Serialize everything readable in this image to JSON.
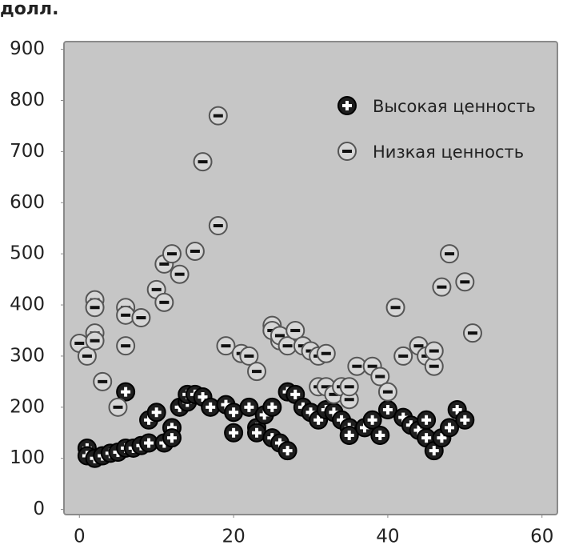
{
  "chart_data": {
    "type": "scatter",
    "ylabel": "долл.",
    "xlim": [
      -2,
      62
    ],
    "xticks": [
      0,
      20,
      40,
      60
    ],
    "ylim": [
      -10,
      915
    ],
    "yticks": [
      0,
      100,
      200,
      300,
      400,
      500,
      600,
      700,
      800,
      900
    ],
    "grid": false,
    "legend": "upper right",
    "series": [
      {
        "name": "Высокая ценность",
        "color": "#1e1e1e",
        "x": [
          1,
          1,
          2,
          3,
          4,
          5,
          6,
          6,
          7,
          8,
          9,
          9,
          10,
          11,
          12,
          12,
          13,
          14,
          14,
          15,
          16,
          17,
          19,
          20,
          20,
          22,
          23,
          23,
          24,
          25,
          25,
          26,
          27,
          27,
          28,
          29,
          30,
          31,
          32,
          33,
          34,
          35,
          35,
          37,
          38,
          39,
          40,
          42,
          43,
          44,
          45,
          45,
          46,
          47,
          48,
          49,
          50
        ],
        "values": [
          120,
          105,
          100,
          105,
          110,
          112,
          120,
          230,
          120,
          125,
          130,
          175,
          190,
          130,
          160,
          140,
          200,
          210,
          225,
          225,
          220,
          200,
          205,
          190,
          150,
          200,
          160,
          150,
          185,
          200,
          140,
          130,
          115,
          230,
          225,
          200,
          190,
          175,
          195,
          190,
          175,
          160,
          145,
          160,
          175,
          145,
          195,
          180,
          165,
          155,
          175,
          140,
          115,
          140,
          160,
          195,
          175
        ]
      },
      {
        "name": "Низкая ценность",
        "color": "#d6d6d6",
        "x": [
          0,
          1,
          2,
          2,
          2,
          2,
          3,
          5,
          6,
          6,
          6,
          8,
          10,
          11,
          11,
          12,
          13,
          15,
          16,
          18,
          18,
          19,
          21,
          22,
          23,
          25,
          25,
          26,
          26,
          27,
          28,
          29,
          30,
          31,
          31,
          32,
          32,
          33,
          34,
          35,
          35,
          36,
          38,
          39,
          40,
          41,
          42,
          44,
          45,
          46,
          46,
          47,
          48,
          50,
          51
        ],
        "values": [
          325,
          300,
          410,
          395,
          345,
          330,
          250,
          200,
          395,
          380,
          320,
          375,
          430,
          480,
          405,
          500,
          460,
          505,
          680,
          555,
          770,
          320,
          305,
          300,
          270,
          360,
          350,
          330,
          340,
          320,
          350,
          320,
          310,
          300,
          240,
          305,
          240,
          225,
          240,
          215,
          240,
          280,
          280,
          260,
          230,
          395,
          300,
          320,
          300,
          280,
          310,
          435,
          500,
          445,
          345
        ]
      }
    ]
  }
}
